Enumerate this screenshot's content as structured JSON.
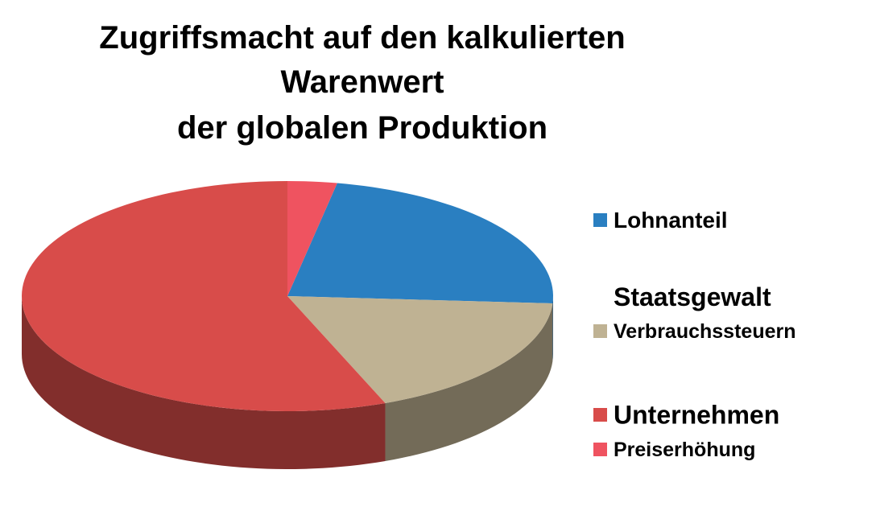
{
  "chart_data": {
    "type": "pie3d",
    "title": [
      "Zugriffsmacht auf den kalkulierten",
      "Warenwert",
      "der globalen Produktion"
    ],
    "legend_heading": "Staatsgewalt",
    "categories": [
      "Lohnanteil",
      "Verbrauchssteuern",
      "Unternehmen",
      "Preiserhöhung"
    ],
    "values": [
      23,
      18,
      56,
      3
    ],
    "colors": [
      "#2a7fc1",
      "#bfb293",
      "#d84c4a",
      "#ef5360"
    ],
    "legend": "right"
  }
}
